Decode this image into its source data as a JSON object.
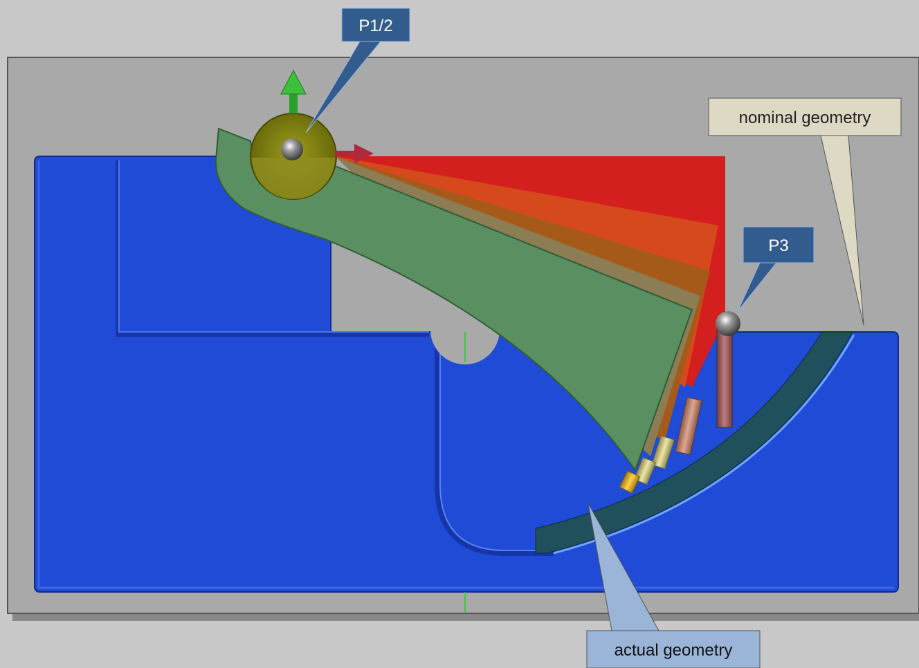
{
  "callouts": {
    "p12": {
      "text": "P1/2"
    },
    "p3": {
      "text": "P3"
    },
    "nominal": {
      "text": "nominal geometry"
    },
    "actual": {
      "text": "actual geometry"
    }
  },
  "colors": {
    "background": "#c8c8c8",
    "plate": "#a9a9a9",
    "part": "#1f4bd6",
    "arm": "#5a8f61",
    "fan_red": "#d41f1f",
    "fan_orange": "#d6491d",
    "fan_dark_orange": "#a65a1a",
    "fan_khaki": "#8c7d54",
    "ball": "#8c8c14",
    "callout_dark": "#325c8e",
    "callout_light_blue": "#9ab5d8",
    "callout_beige": "#ddd9c4",
    "actual_geometry_surface": "#20505c"
  },
  "icons": {
    "axis_arrow_up": "green-arrow-icon",
    "axis_arrow_right": "red-arrow-icon",
    "probe_ball": "sphere-icon"
  }
}
